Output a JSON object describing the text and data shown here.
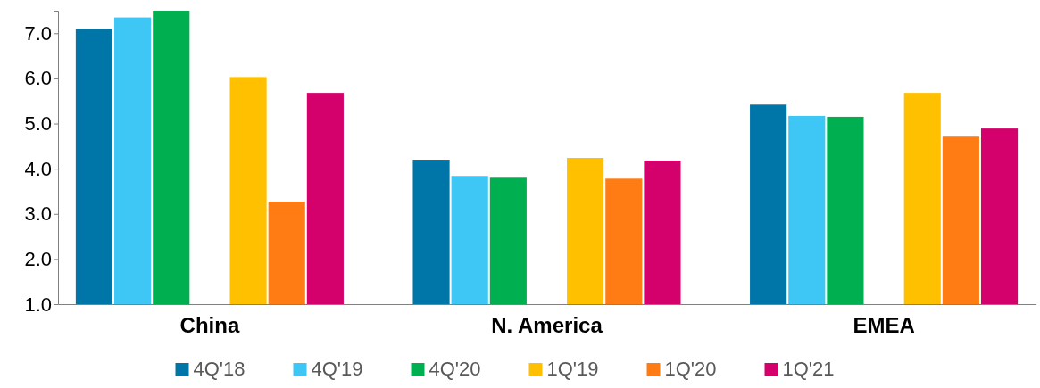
{
  "chart_data": {
    "type": "bar",
    "categories": [
      "China",
      "N. America",
      "EMEA"
    ],
    "series": [
      {
        "name": "4Q'18",
        "color": "#0076a8",
        "values": [
          7.1,
          4.2,
          5.42
        ]
      },
      {
        "name": "4Q'19",
        "color": "#3ec6f4",
        "values": [
          7.35,
          3.84,
          5.17
        ]
      },
      {
        "name": "4Q'20",
        "color": "#00b050",
        "values": [
          7.5,
          3.8,
          5.15
        ]
      },
      {
        "name": "1Q'19",
        "color": "#ffc000",
        "values": [
          6.03,
          4.24,
          5.68
        ]
      },
      {
        "name": "1Q'20",
        "color": "#ff7c14",
        "values": [
          3.27,
          3.78,
          4.71
        ]
      },
      {
        "name": "1Q'21",
        "color": "#d4006c",
        "values": [
          5.68,
          4.18,
          4.89
        ]
      }
    ],
    "ylim": [
      1,
      7.5
    ],
    "yticks": [
      {
        "value": 1,
        "label": "1.0"
      },
      {
        "value": 2,
        "label": "2.0"
      },
      {
        "value": 3,
        "label": "3.0"
      },
      {
        "value": 4,
        "label": "4.0"
      },
      {
        "value": 5,
        "label": "5.0"
      },
      {
        "value": 6,
        "label": "6.0"
      },
      {
        "value": 7,
        "label": "7.0"
      }
    ],
    "grid": false,
    "legend": "bottom"
  }
}
